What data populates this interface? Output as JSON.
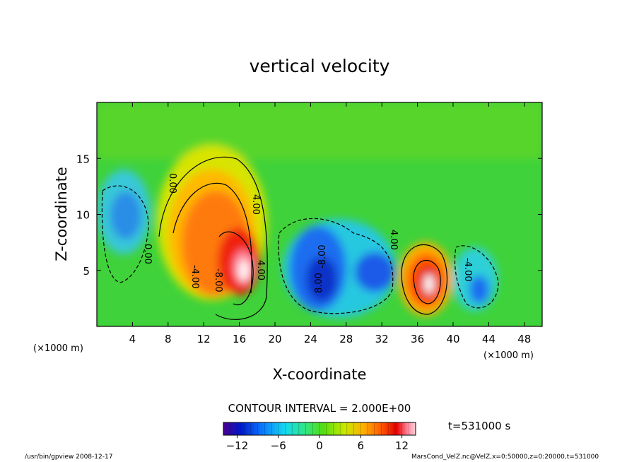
{
  "chart_data": {
    "type": "heatmap",
    "title": "vertical velocity",
    "xlabel": "X-coordinate",
    "ylabel": "Z-coordinate",
    "x_unit": "(×1000 m)",
    "z_unit": "(×1000 m)",
    "xlim": [
      0,
      50
    ],
    "ylim": [
      0,
      20
    ],
    "x_ticks": [
      4,
      8,
      12,
      16,
      20,
      24,
      28,
      32,
      36,
      40,
      44,
      48
    ],
    "y_ticks": [
      5,
      10,
      15
    ],
    "contour_interval_text": "CONTOUR INTERVAL = 2.000E+00",
    "contour_labels": [
      "0.00",
      "0.00",
      "4.00",
      "-8.00",
      "-4.00",
      "4.00",
      "8.00",
      "-8.00",
      "4.00",
      "-4.00"
    ],
    "colorbar": {
      "range": [
        -14,
        14
      ],
      "ticks": [
        -12,
        -6,
        0,
        6,
        12
      ],
      "tick_labels": [
        "−12",
        "−6",
        "0",
        "6",
        "12"
      ],
      "colors": [
        "#4a0090",
        "#0018c8",
        "#0a78ff",
        "#15d8f0",
        "#2ee68a",
        "#55dd10",
        "#c8e800",
        "#ffb000",
        "#ff5a00",
        "#e60000",
        "#ff8aa0",
        "#ffffff"
      ]
    },
    "time_label": "t=531000 s",
    "features": [
      {
        "kind": "updraft",
        "x": 16.5,
        "z": 5.5,
        "peak": 14
      },
      {
        "kind": "updraft",
        "x": 37.5,
        "z": 3.8,
        "peak": 14
      },
      {
        "kind": "downdraft",
        "x": 25,
        "z": 3,
        "peak": -10
      },
      {
        "kind": "downdraft",
        "x": 31,
        "z": 4.5,
        "peak": -9
      },
      {
        "kind": "downdraft",
        "x": 3,
        "z": 9,
        "peak": -7
      },
      {
        "kind": "downdraft",
        "x": 42,
        "z": 3,
        "peak": -7
      }
    ]
  },
  "footer": {
    "program": "/usr/bin/gpview   2008-12-17",
    "file_info": "MarsCond_VelZ.nc@VelZ,x=0:50000,z=0:20000,t=531000"
  }
}
